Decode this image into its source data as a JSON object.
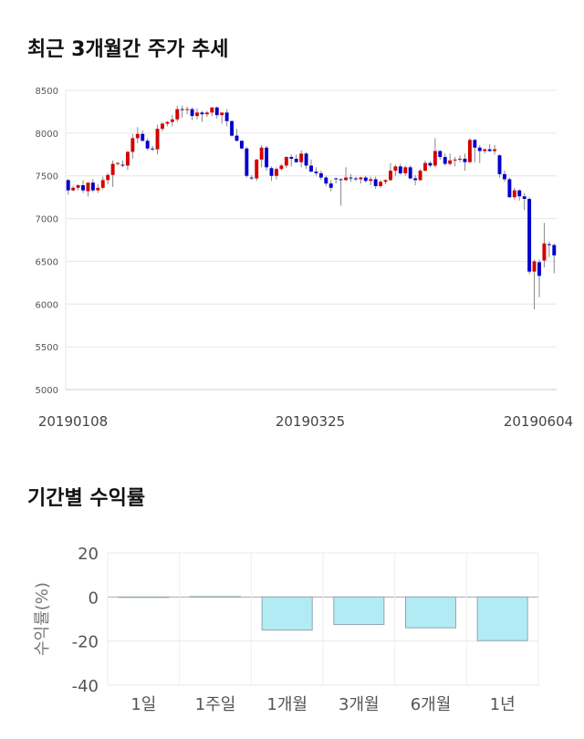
{
  "titles": {
    "price_chart": "최근 3개월간 주가 추세",
    "returns_chart": "기간별 수익률"
  },
  "chart_data": [
    {
      "type": "candlestick",
      "title": "최근 3개월간 주가 추세",
      "x_tick_labels": [
        "20190108",
        "20190325",
        "20190604"
      ],
      "y_ticks": [
        5000,
        5500,
        6000,
        6500,
        7000,
        7500,
        8000,
        8500
      ],
      "ylim": [
        5000,
        8500
      ],
      "grid": true,
      "colors": {
        "up": "#d40000",
        "down": "#0000cc",
        "wick": "#888888"
      },
      "ohlc": [
        [
          7450,
          7460,
          7280,
          7330
        ],
        [
          7330,
          7380,
          7320,
          7360
        ],
        [
          7360,
          7400,
          7330,
          7390
        ],
        [
          7390,
          7450,
          7300,
          7330
        ],
        [
          7320,
          7420,
          7260,
          7420
        ],
        [
          7420,
          7460,
          7310,
          7330
        ],
        [
          7330,
          7400,
          7300,
          7360
        ],
        [
          7360,
          7490,
          7340,
          7450
        ],
        [
          7450,
          7530,
          7400,
          7510
        ],
        [
          7510,
          7680,
          7370,
          7640
        ],
        [
          7640,
          7660,
          7620,
          7650
        ],
        [
          7630,
          7680,
          7600,
          7620
        ],
        [
          7620,
          7790,
          7570,
          7780
        ],
        [
          7780,
          7990,
          7700,
          7940
        ],
        [
          7940,
          8070,
          7880,
          7990
        ],
        [
          7990,
          8030,
          7900,
          7910
        ],
        [
          7910,
          7940,
          7800,
          7820
        ],
        [
          7820,
          7850,
          7790,
          7810
        ],
        [
          7810,
          8100,
          7750,
          8050
        ],
        [
          8050,
          8130,
          8020,
          8110
        ],
        [
          8110,
          8140,
          8080,
          8130
        ],
        [
          8130,
          8210,
          8080,
          8160
        ],
        [
          8160,
          8320,
          8130,
          8280
        ],
        [
          8280,
          8320,
          8180,
          8270
        ],
        [
          8270,
          8310,
          8220,
          8280
        ],
        [
          8280,
          8300,
          8150,
          8200
        ],
        [
          8200,
          8290,
          8160,
          8240
        ],
        [
          8240,
          8260,
          8130,
          8220
        ],
        [
          8220,
          8260,
          8190,
          8240
        ],
        [
          8240,
          8300,
          8200,
          8300
        ],
        [
          8300,
          8310,
          8170,
          8210
        ],
        [
          8210,
          8240,
          8110,
          8240
        ],
        [
          8240,
          8280,
          8080,
          8140
        ],
        [
          8140,
          8150,
          7960,
          7970
        ],
        [
          7970,
          8050,
          7900,
          7910
        ],
        [
          7910,
          7910,
          7810,
          7820
        ],
        [
          7820,
          7840,
          7480,
          7500
        ],
        [
          7480,
          7510,
          7450,
          7470
        ],
        [
          7470,
          7700,
          7440,
          7690
        ],
        [
          7690,
          7860,
          7600,
          7830
        ],
        [
          7830,
          7850,
          7560,
          7600
        ],
        [
          7590,
          7610,
          7440,
          7500
        ],
        [
          7500,
          7600,
          7460,
          7580
        ],
        [
          7580,
          7640,
          7560,
          7620
        ],
        [
          7620,
          7730,
          7590,
          7720
        ],
        [
          7720,
          7750,
          7610,
          7700
        ],
        [
          7700,
          7750,
          7650,
          7660
        ],
        [
          7660,
          7800,
          7600,
          7760
        ],
        [
          7760,
          7780,
          7580,
          7620
        ],
        [
          7620,
          7690,
          7540,
          7550
        ],
        [
          7550,
          7600,
          7500,
          7530
        ],
        [
          7530,
          7560,
          7450,
          7480
        ],
        [
          7480,
          7500,
          7380,
          7410
        ],
        [
          7410,
          7450,
          7320,
          7360
        ],
        [
          7470,
          7480,
          7410,
          7460
        ],
        [
          7460,
          7470,
          7150,
          7450
        ],
        [
          7450,
          7600,
          7440,
          7480
        ],
        [
          7480,
          7520,
          7430,
          7470
        ],
        [
          7470,
          7490,
          7440,
          7460
        ],
        [
          7460,
          7490,
          7410,
          7480
        ],
        [
          7480,
          7500,
          7420,
          7440
        ],
        [
          7440,
          7490,
          7390,
          7460
        ],
        [
          7460,
          7490,
          7350,
          7380
        ],
        [
          7380,
          7450,
          7360,
          7430
        ],
        [
          7430,
          7460,
          7400,
          7450
        ],
        [
          7450,
          7650,
          7440,
          7560
        ],
        [
          7560,
          7630,
          7500,
          7610
        ],
        [
          7610,
          7640,
          7510,
          7530
        ],
        [
          7530,
          7620,
          7500,
          7600
        ],
        [
          7600,
          7620,
          7460,
          7470
        ],
        [
          7470,
          7510,
          7390,
          7450
        ],
        [
          7450,
          7580,
          7440,
          7560
        ],
        [
          7560,
          7680,
          7550,
          7650
        ],
        [
          7650,
          7670,
          7600,
          7620
        ],
        [
          7620,
          7940,
          7600,
          7790
        ],
        [
          7790,
          7800,
          7690,
          7720
        ],
        [
          7720,
          7760,
          7620,
          7640
        ],
        [
          7640,
          7760,
          7620,
          7680
        ],
        [
          7680,
          7720,
          7610,
          7690
        ],
        [
          7690,
          7740,
          7660,
          7700
        ],
        [
          7700,
          7760,
          7560,
          7660
        ],
        [
          7660,
          7940,
          7650,
          7920
        ],
        [
          7920,
          7930,
          7660,
          7830
        ],
        [
          7830,
          7860,
          7650,
          7790
        ],
        [
          7790,
          7820,
          7760,
          7810
        ],
        [
          7810,
          7870,
          7780,
          7790
        ],
        [
          7790,
          7860,
          7750,
          7810
        ],
        [
          7740,
          7750,
          7480,
          7520
        ],
        [
          7520,
          7560,
          7430,
          7460
        ],
        [
          7460,
          7480,
          7240,
          7250
        ],
        [
          7250,
          7360,
          7220,
          7330
        ],
        [
          7330,
          7340,
          7210,
          7260
        ],
        [
          7260,
          7300,
          7100,
          7230
        ],
        [
          7230,
          7250,
          6350,
          6380
        ],
        [
          6380,
          6520,
          5940,
          6500
        ],
        [
          6490,
          6520,
          6080,
          6330
        ],
        [
          6510,
          6950,
          6430,
          6710
        ],
        [
          6700,
          6730,
          6550,
          6690
        ],
        [
          6690,
          6710,
          6360,
          6570
        ]
      ]
    },
    {
      "type": "bar",
      "categories": [
        "1일",
        "1주일",
        "1개월",
        "3개월",
        "6개월",
        "1년"
      ],
      "values": [
        0.0,
        0.2,
        -15.0,
        -12.5,
        -14.0,
        -19.8
      ],
      "ylabel": "수익률(%)",
      "y_ticks": [
        20,
        0,
        -20,
        -40
      ],
      "ylim": [
        -40,
        20
      ],
      "grid": true,
      "colors": {
        "bar_fill": "#b3ebf5",
        "bar_edge": "#8fa8b0",
        "zero_line": "#aaaaaa"
      }
    }
  ]
}
